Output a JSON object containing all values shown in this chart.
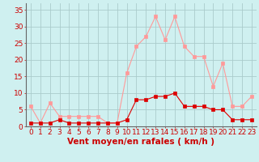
{
  "hours": [
    0,
    1,
    2,
    3,
    4,
    5,
    6,
    7,
    8,
    9,
    10,
    11,
    12,
    13,
    14,
    15,
    16,
    17,
    18,
    19,
    20,
    21,
    22,
    23
  ],
  "wind_avg": [
    1,
    1,
    1,
    2,
    1,
    1,
    1,
    1,
    1,
    1,
    2,
    8,
    8,
    9,
    9,
    10,
    6,
    6,
    6,
    5,
    5,
    2,
    2,
    2
  ],
  "wind_gust": [
    6,
    1,
    7,
    3,
    3,
    3,
    3,
    3,
    1,
    1,
    16,
    24,
    27,
    33,
    26,
    33,
    24,
    21,
    21,
    12,
    19,
    6,
    6,
    9
  ],
  "bg_color": "#cff0f0",
  "grid_color": "#aacccc",
  "line_avg_color": "#dd0000",
  "line_gust_color": "#ff9999",
  "marker_size": 2.5,
  "xlabel": "Vent moyen/en rafales ( km/h )",
  "ylabel_values": [
    0,
    5,
    10,
    15,
    20,
    25,
    30,
    35
  ],
  "ylim": [
    0,
    37
  ],
  "axis_label_fontsize": 7.5,
  "tick_fontsize": 6.5
}
